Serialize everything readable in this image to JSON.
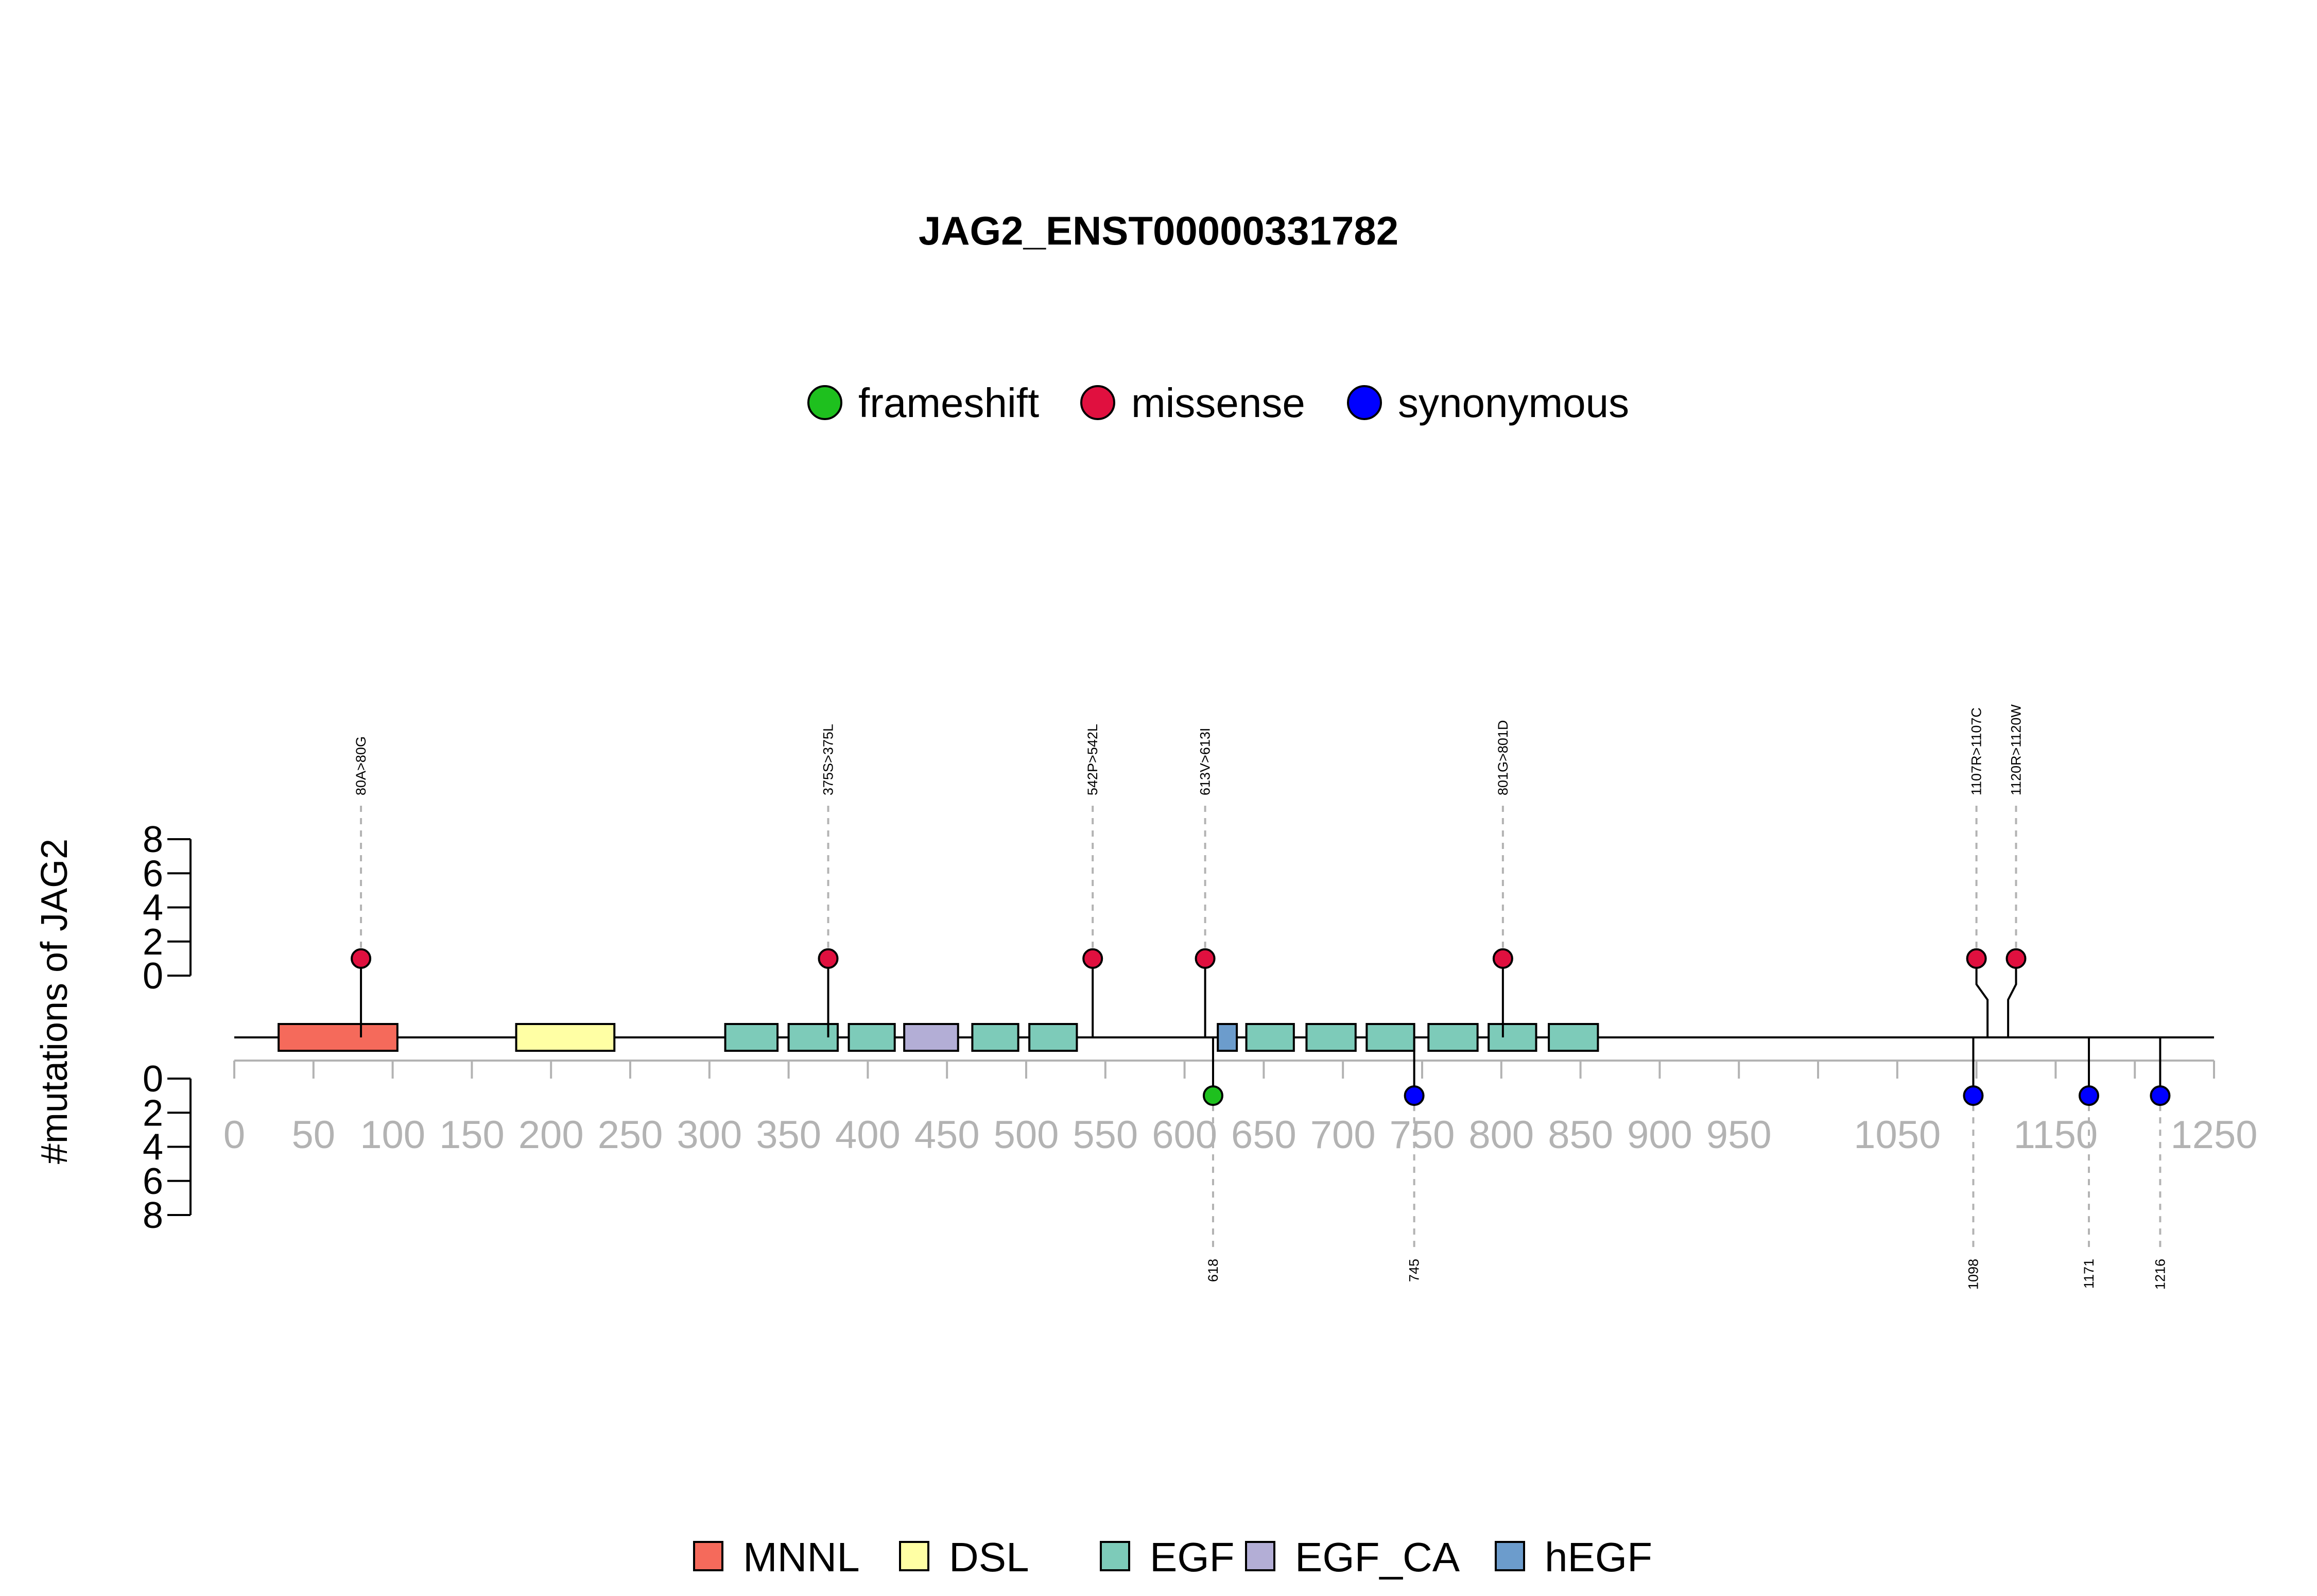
{
  "chart_data": {
    "type": "lollipop",
    "title": "JAG2_ENST00000331782",
    "ylabel": "#mutations of JAG2",
    "protein_length": 1250,
    "xlim": [
      0,
      1250
    ],
    "x_ticks": [
      0,
      50,
      100,
      150,
      200,
      250,
      300,
      350,
      400,
      450,
      500,
      550,
      600,
      650,
      700,
      750,
      800,
      850,
      900,
      950,
      1050,
      1150,
      1250
    ],
    "x_minor_ticks": [
      1000,
      1100,
      1200
    ],
    "y_ticks": [
      0,
      2,
      4,
      6,
      8
    ],
    "ylim": [
      0,
      8
    ],
    "mutation_types": [
      {
        "name": "frameshift",
        "color": "#1ec01e"
      },
      {
        "name": "missense",
        "color": "#e0103f"
      },
      {
        "name": "synonymous",
        "color": "#0000ff"
      }
    ],
    "domains": [
      {
        "name": "MNNL",
        "color": "#f56a5b"
      },
      {
        "name": "DSL",
        "color": "#ffffa4"
      },
      {
        "name": "EGF",
        "color": "#7dcbb9"
      },
      {
        "name": "EGF_CA",
        "color": "#b3aed6"
      },
      {
        "name": "hEGF",
        "color": "#6c9ccc"
      }
    ],
    "domain_regions": [
      {
        "domain": "MNNL",
        "start": 28,
        "end": 103
      },
      {
        "domain": "DSL",
        "start": 178,
        "end": 240
      },
      {
        "domain": "EGF",
        "start": 310,
        "end": 343
      },
      {
        "domain": "EGF",
        "start": 350,
        "end": 381
      },
      {
        "domain": "EGF",
        "start": 388,
        "end": 417
      },
      {
        "domain": "EGF_CA",
        "start": 423,
        "end": 457
      },
      {
        "domain": "EGF",
        "start": 466,
        "end": 495
      },
      {
        "domain": "EGF",
        "start": 502,
        "end": 532
      },
      {
        "domain": "hEGF",
        "start": 621,
        "end": 633
      },
      {
        "domain": "EGF",
        "start": 639,
        "end": 669
      },
      {
        "domain": "EGF",
        "start": 677,
        "end": 708
      },
      {
        "domain": "EGF",
        "start": 715,
        "end": 745
      },
      {
        "domain": "EGF",
        "start": 754,
        "end": 785
      },
      {
        "domain": "EGF",
        "start": 792,
        "end": 822
      },
      {
        "domain": "EGF",
        "start": 830,
        "end": 861
      }
    ],
    "mutations_top": [
      {
        "label": "80A>80G",
        "position": 80,
        "count": 1,
        "type": "missense"
      },
      {
        "label": "375S>375L",
        "position": 375,
        "count": 1,
        "type": "missense"
      },
      {
        "label": "542P>542L",
        "position": 542,
        "count": 1,
        "type": "missense"
      },
      {
        "label": "613V>613I",
        "position": 613,
        "count": 1,
        "type": "missense"
      },
      {
        "label": "801G>801D",
        "position": 801,
        "count": 1,
        "type": "missense"
      },
      {
        "label": "1107R>1107C",
        "position": 1107,
        "count": 1,
        "type": "missense",
        "label_pos": 1100
      },
      {
        "label": "1120R>1120W",
        "position": 1120,
        "count": 1,
        "type": "missense",
        "label_pos": 1125
      }
    ],
    "mutations_bottom": [
      {
        "label": "618",
        "position": 618,
        "count": 1,
        "type": "frameshift"
      },
      {
        "label": "745",
        "position": 745,
        "count": 1,
        "type": "synonymous"
      },
      {
        "label": "1098",
        "position": 1098,
        "count": 1,
        "type": "synonymous"
      },
      {
        "label": "1171",
        "position": 1171,
        "count": 1,
        "type": "synonymous"
      },
      {
        "label": "1216",
        "position": 1216,
        "count": 1,
        "type": "synonymous"
      }
    ]
  }
}
